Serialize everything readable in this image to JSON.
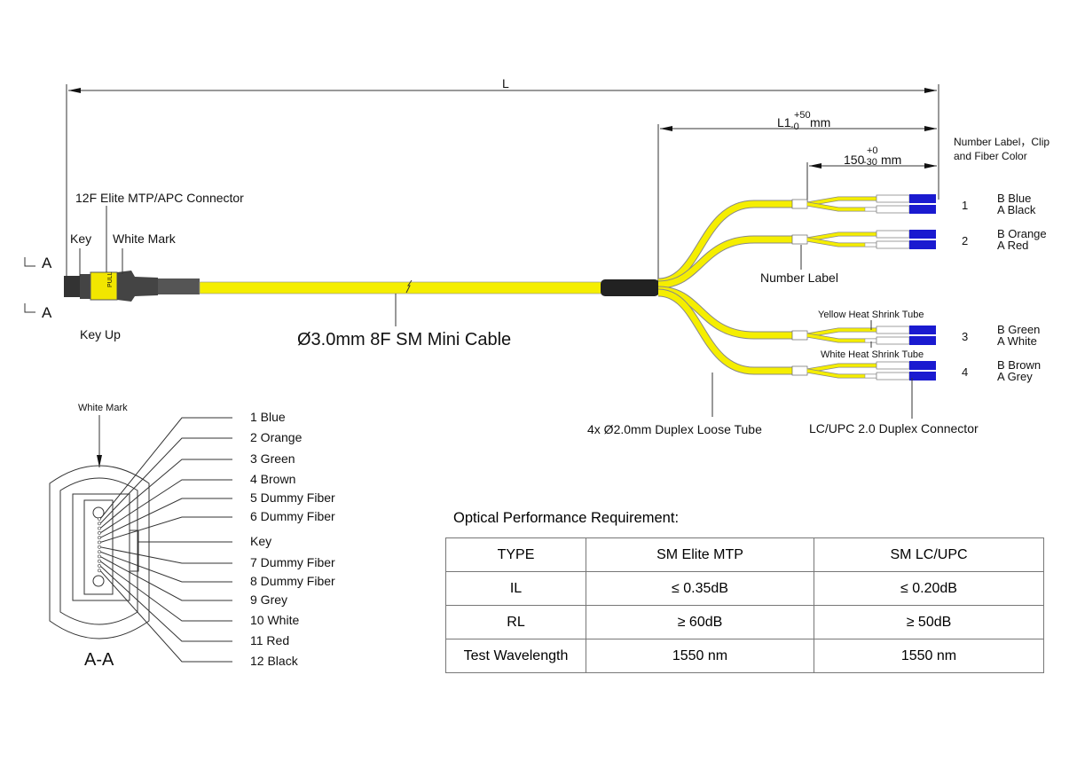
{
  "dimensions": {
    "overall": "L",
    "breakout_length": "L1",
    "breakout_tol_plus": "+50",
    "breakout_tol_minus": "-0",
    "breakout_unit": "mm",
    "fanout_length": "150",
    "fanout_tol_plus": "+0",
    "fanout_tol_minus": "-30",
    "fanout_unit": "mm"
  },
  "labels": {
    "mtp_connector": "12F Elite MTP/APC Connector",
    "key": "Key",
    "white_mark": "White Mark",
    "section_a": "A",
    "key_up": "Key Up",
    "cable": "Ø3.0mm 8F SM Mini Cable",
    "number_label": "Number Label",
    "clip_header_1": "Number Label，Clip",
    "clip_header_2": "and Fiber Color",
    "yellow_tube": "Yellow Heat Shrink Tube",
    "white_tube": "White Heat Shrink Tube",
    "loose_tube": "4x Ø2.0mm Duplex Loose Tube",
    "lc_connector": "LC/UPC  2.0 Duplex Connector",
    "pull": "PULL"
  },
  "legs": [
    {
      "number": "1",
      "b": "B Blue",
      "a": "A Black"
    },
    {
      "number": "2",
      "b": "B  Orange",
      "a": "A  Red"
    },
    {
      "number": "3",
      "b": "B  Green",
      "a": "A  White"
    },
    {
      "number": "4",
      "b": "B  Brown",
      "a": "A  Grey"
    }
  ],
  "section": {
    "title": "A-A",
    "white_mark": "White Mark",
    "positions": [
      "1 Blue",
      "2 Orange",
      "3 Green",
      "4 Brown",
      "5 Dummy Fiber",
      "6 Dummy Fiber",
      "Key",
      "7 Dummy Fiber",
      "8 Dummy Fiber",
      "9 Grey",
      "10 White",
      "11 Red",
      "12 Black"
    ]
  },
  "table": {
    "title": "Optical Performance Requirement:",
    "headers": [
      "TYPE",
      "SM Elite MTP",
      "SM LC/UPC"
    ],
    "rows": [
      [
        "IL",
        "≤ 0.35dB",
        "≤ 0.20dB"
      ],
      [
        "RL",
        "≥ 60dB",
        "≥ 50dB"
      ],
      [
        "Test Wavelength",
        "1550 nm",
        "1550 nm"
      ]
    ]
  },
  "colors": {
    "cable_yellow": "#f5ee00",
    "connector_blue": "#1a1ad0",
    "boot_black": "#222222",
    "mtp_housing": "#f2e600"
  }
}
